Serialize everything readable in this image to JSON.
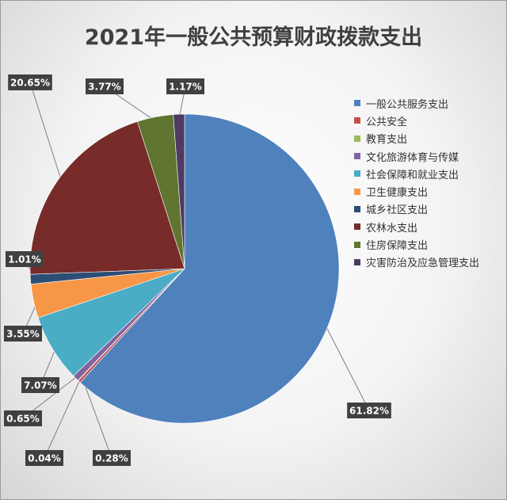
{
  "chart_data": {
    "type": "pie",
    "title": "2021年一般公共预算财政拨款支出",
    "categories": [
      "一般公共服务支出",
      "公共安全",
      "教育支出",
      "文化旅游体育与传媒",
      "社会保障和就业支出",
      "卫生健康支出",
      "城乡社区支出",
      "农林水支出",
      "住房保障支出",
      "灾害防治及应急管理支出"
    ],
    "values": [
      61.82,
      0.28,
      0.04,
      0.65,
      7.07,
      3.55,
      1.01,
      20.65,
      3.77,
      1.17
    ],
    "labels": [
      "61.82%",
      "0.28%",
      "0.04%",
      "0.65%",
      "7.07%",
      "3.55%",
      "1.01%",
      "20.65%",
      "3.77%",
      "1.17%"
    ],
    "colors": [
      "#4f81bd",
      "#c0504d",
      "#9bbb59",
      "#8064a2",
      "#4bacc6",
      "#f79646",
      "#2c4d75",
      "#772c2a",
      "#5f7530",
      "#4d3b62"
    ],
    "legend_position": "right",
    "start_angle_deg": 0,
    "direction": "clockwise"
  }
}
